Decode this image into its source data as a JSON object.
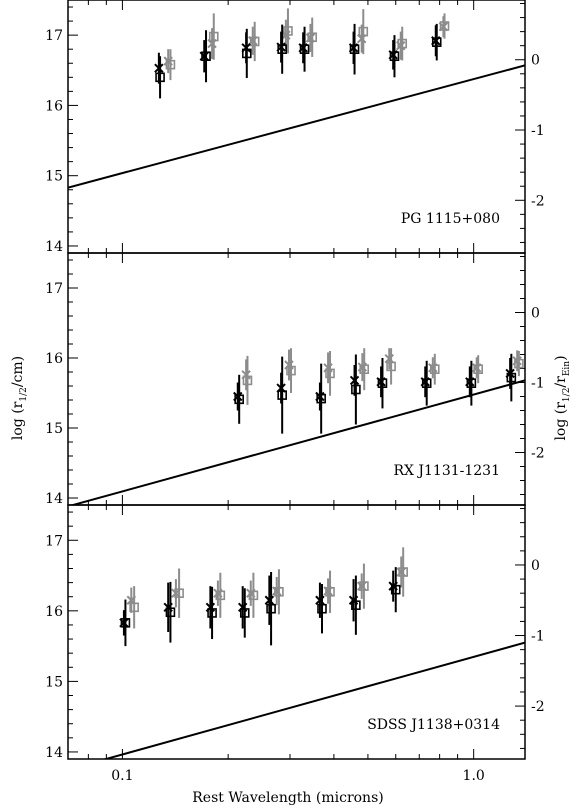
{
  "figure": {
    "ylabel_left": "log (r",
    "ylabel_left_sub": "1/2",
    "ylabel_left_tail": "/cm)",
    "ylabel_right_head": "log (r",
    "ylabel_right_sub1": "1/2",
    "ylabel_right_mid": "/r",
    "ylabel_right_sub2": "Ein",
    "ylabel_right_tail": ")",
    "xlabel": "Rest Wavelength (microns)",
    "colors": {
      "dark": "#000000",
      "light": "#8c8c8c"
    }
  },
  "chart_data": [
    {
      "type": "scatter",
      "title": "PG 1115+080",
      "xscale": "log",
      "xlim": [
        0.07,
        1.4
      ],
      "ylim": [
        13.9,
        17.5
      ],
      "ylim_right": [
        -2.75,
        0.85
      ],
      "yticks": [
        14,
        15,
        16,
        17
      ],
      "yticklabels": [
        "14",
        "15",
        "16",
        "17"
      ],
      "yticks_right": [
        -2,
        -1,
        0
      ],
      "yticklabels_right": [
        "-2",
        "-1",
        "0"
      ],
      "series": [
        {
          "marker": "x",
          "color": "dark",
          "x": [
            0.127,
            0.171,
            0.225,
            0.283,
            0.327,
            0.455,
            0.59,
            0.78
          ],
          "y": [
            16.53,
            16.7,
            16.82,
            16.83,
            16.82,
            16.82,
            16.72,
            16.92
          ],
          "err": [
            0.22,
            0.23,
            0.22,
            0.22,
            0.22,
            0.23,
            0.21,
            0.22
          ]
        },
        {
          "marker": "square",
          "color": "dark",
          "x": [
            0.128,
            0.173,
            0.226,
            0.285,
            0.33,
            0.458,
            0.595,
            0.785
          ],
          "y": [
            16.4,
            16.7,
            16.74,
            16.8,
            16.8,
            16.8,
            16.7,
            16.9
          ],
          "err": [
            0.3,
            0.37,
            0.35,
            0.35,
            0.32,
            0.36,
            0.3,
            0.26
          ]
        },
        {
          "marker": "x",
          "color": "light",
          "x": [
            0.135,
            0.18,
            0.235,
            0.292,
            0.343,
            0.48,
            0.62,
            0.82
          ],
          "y": [
            16.63,
            16.88,
            16.92,
            17.0,
            16.96,
            16.95,
            16.85,
            17.12
          ],
          "err": [
            0.17,
            0.22,
            0.2,
            0.22,
            0.2,
            0.2,
            0.2,
            0.15
          ]
        },
        {
          "marker": "square",
          "color": "light",
          "x": [
            0.137,
            0.182,
            0.238,
            0.296,
            0.347,
            0.485,
            0.626,
            0.826
          ],
          "y": [
            16.58,
            16.98,
            16.91,
            17.06,
            16.97,
            17.05,
            16.88,
            17.13
          ],
          "err": [
            0.22,
            0.33,
            0.28,
            0.32,
            0.28,
            0.32,
            0.24,
            0.18
          ]
        }
      ],
      "einstein_line": {
        "x": [
          0.07,
          1.4
        ],
        "y": [
          14.83,
          16.57
        ]
      }
    },
    {
      "type": "scatter",
      "title": "RX J1131-1231",
      "xscale": "log",
      "xlim": [
        0.07,
        1.4
      ],
      "ylim": [
        13.9,
        17.5
      ],
      "ylim_right": [
        -2.75,
        0.85
      ],
      "yticks": [
        14,
        15,
        16,
        17
      ],
      "yticklabels": [
        "14",
        "15",
        "16",
        "17"
      ],
      "yticks_right": [
        -2,
        -1,
        0
      ],
      "yticklabels_right": [
        "-2",
        "-1",
        "0"
      ],
      "series": [
        {
          "marker": "x",
          "color": "dark",
          "x": [
            0.213,
            0.283,
            0.365,
            0.458,
            0.545,
            0.728,
            0.975,
            1.27
          ],
          "y": [
            15.45,
            15.57,
            15.45,
            15.68,
            15.66,
            15.66,
            15.66,
            15.78
          ],
          "err": [
            0.2,
            0.22,
            0.2,
            0.22,
            0.22,
            0.22,
            0.22,
            0.22
          ]
        },
        {
          "marker": "square",
          "color": "dark",
          "x": [
            0.215,
            0.285,
            0.368,
            0.462,
            0.55,
            0.735,
            0.985,
            1.28
          ],
          "y": [
            15.41,
            15.47,
            15.42,
            15.55,
            15.64,
            15.64,
            15.64,
            15.72
          ],
          "err": [
            0.35,
            0.55,
            0.5,
            0.5,
            0.36,
            0.32,
            0.32,
            0.34
          ]
        },
        {
          "marker": "x",
          "color": "light",
          "x": [
            0.225,
            0.298,
            0.385,
            0.482,
            0.575,
            0.765,
            1.02,
            1.33
          ],
          "y": [
            15.76,
            15.9,
            15.86,
            15.87,
            15.99,
            15.86,
            15.86,
            15.96
          ],
          "err": [
            0.22,
            0.22,
            0.22,
            0.2,
            0.15,
            0.15,
            0.15,
            0.15
          ]
        },
        {
          "marker": "square",
          "color": "light",
          "x": [
            0.227,
            0.302,
            0.39,
            0.488,
            0.582,
            0.775,
            1.03,
            1.345
          ],
          "y": [
            15.68,
            15.82,
            15.78,
            15.84,
            15.88,
            15.84,
            15.84,
            15.92
          ],
          "err": [
            0.35,
            0.32,
            0.32,
            0.3,
            0.26,
            0.22,
            0.2,
            0.18
          ]
        }
      ],
      "einstein_line": {
        "x": [
          0.07,
          1.4
        ],
        "y": [
          13.88,
          15.68
        ]
      }
    },
    {
      "type": "scatter",
      "title": "SDSS J1138+0314",
      "xscale": "log",
      "xlim": [
        0.07,
        1.4
      ],
      "ylim": [
        13.9,
        17.5
      ],
      "ylim_right": [
        -2.75,
        0.85
      ],
      "yticks": [
        14,
        15,
        16,
        17
      ],
      "yticklabels": [
        "14",
        "15",
        "16",
        "17"
      ],
      "yticks_right": [
        -2,
        -1,
        0
      ],
      "yticklabels_right": [
        "-2",
        "-1",
        "0"
      ],
      "xticks": [
        0.1,
        1.0
      ],
      "xticklabels": [
        "0.1",
        "1.0"
      ],
      "series": [
        {
          "marker": "x",
          "color": "dark",
          "x": [
            0.101,
            0.135,
            0.178,
            0.22,
            0.262,
            0.365,
            0.455,
            0.59
          ],
          "y": [
            15.83,
            16.05,
            16.05,
            16.05,
            16.15,
            16.15,
            16.15,
            16.35
          ],
          "err": [
            0.18,
            0.35,
            0.3,
            0.3,
            0.35,
            0.25,
            0.3,
            0.22
          ]
        },
        {
          "marker": "square",
          "color": "dark",
          "x": [
            0.102,
            0.137,
            0.18,
            0.223,
            0.265,
            0.37,
            0.462,
            0.6
          ],
          "y": [
            15.83,
            15.98,
            15.97,
            15.97,
            16.03,
            16.03,
            16.08,
            16.3
          ],
          "err": [
            0.33,
            0.43,
            0.37,
            0.35,
            0.52,
            0.35,
            0.42,
            0.32
          ]
        },
        {
          "marker": "x",
          "color": "light",
          "x": [
            0.106,
            0.142,
            0.187,
            0.232,
            0.275,
            0.385,
            0.48,
            0.622
          ],
          "y": [
            16.15,
            16.25,
            16.25,
            16.25,
            16.28,
            16.28,
            16.35,
            16.55
          ],
          "err": [
            0.18,
            0.2,
            0.18,
            0.18,
            0.2,
            0.18,
            0.18,
            0.22
          ]
        },
        {
          "marker": "square",
          "color": "light",
          "x": [
            0.108,
            0.145,
            0.19,
            0.236,
            0.279,
            0.39,
            0.487,
            0.63
          ],
          "y": [
            16.05,
            16.25,
            16.22,
            16.22,
            16.27,
            16.27,
            16.35,
            16.55
          ],
          "err": [
            0.3,
            0.35,
            0.32,
            0.32,
            0.32,
            0.3,
            0.32,
            0.35
          ]
        }
      ],
      "einstein_line": {
        "x": [
          0.07,
          1.4
        ],
        "y": [
          13.75,
          15.55
        ]
      }
    }
  ]
}
